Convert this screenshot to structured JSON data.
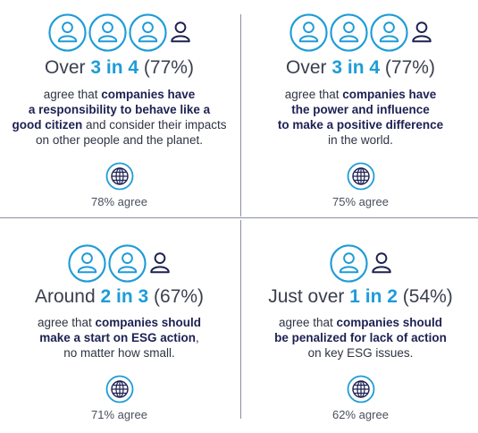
{
  "colors": {
    "accent": "#1e9cd8",
    "navy": "#1d2152",
    "divider": "#8a8fa6"
  },
  "icons": {
    "person_circle": "person-in-circle-icon",
    "person": "person-icon",
    "globe": "globe-icon"
  },
  "quadrants": [
    {
      "headline": {
        "prefix": "Over ",
        "emphasis": "3 in 4",
        "suffix": " (77%)"
      },
      "filled_people": 3,
      "desc": [
        {
          "text": "agree that ",
          "bold": "companies have"
        },
        {
          "text": "",
          "bold": "a responsibility to behave like a"
        },
        {
          "bold": "good citizen",
          "text": " and consider their impacts"
        },
        {
          "text": "on other people and the planet.",
          "bold": ""
        }
      ],
      "agree": "78% agree"
    },
    {
      "headline": {
        "prefix": "Over ",
        "emphasis": "3 in 4",
        "suffix": " (77%)"
      },
      "filled_people": 3,
      "desc": [
        {
          "text": "agree that ",
          "bold": "companies have"
        },
        {
          "text": "",
          "bold": "the power and influence"
        },
        {
          "text": "",
          "bold": "to make a positive difference"
        },
        {
          "text": "in the world.",
          "bold": ""
        }
      ],
      "agree": "75% agree"
    },
    {
      "headline": {
        "prefix": "Around ",
        "emphasis": "2 in 3",
        "suffix": " (67%)"
      },
      "filled_people": 2,
      "desc": [
        {
          "text": "agree that ",
          "bold": "companies should"
        },
        {
          "bold": "make a start on ESG action",
          "text": ","
        },
        {
          "text": "no matter how small.",
          "bold": ""
        }
      ],
      "agree": "71% agree"
    },
    {
      "headline": {
        "prefix": "Just over ",
        "emphasis": "1 in 2",
        "suffix": " (54%)"
      },
      "filled_people": 1,
      "desc": [
        {
          "text": "agree that ",
          "bold": "companies should"
        },
        {
          "text": "",
          "bold": "be penalized for lack of action"
        },
        {
          "text": "on key ESG issues.",
          "bold": ""
        }
      ],
      "agree": "62% agree"
    }
  ]
}
